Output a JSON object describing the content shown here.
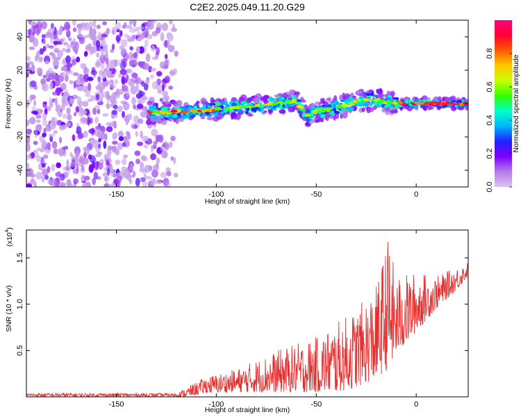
{
  "title": "C2E2.2025.049.11.20.G29",
  "chart_data": [
    {
      "type": "heatmap",
      "xlabel": "Height of straight line (km)",
      "ylabel": "Frequency (Hz)",
      "xlim": [
        -195,
        26
      ],
      "ylim": [
        -50,
        50
      ],
      "xticks": [
        -150,
        -100,
        -50,
        0
      ],
      "yticks": [
        -40,
        -20,
        0,
        20,
        40
      ],
      "colorbar": {
        "label": "Normalized spectral amplitude",
        "range": [
          0,
          1
        ],
        "ticks": [
          0.0,
          0.2,
          0.4,
          0.6,
          0.8
        ],
        "colormap": [
          "#d9c3f2",
          "#b47ee6",
          "#8000ff",
          "#2020ff",
          "#00b4ff",
          "#00ffc8",
          "#32ff00",
          "#c8ff00",
          "#ffc800",
          "#ff5a00",
          "#ff0032",
          "#ff0080"
        ]
      },
      "noise_region_x": [
        -195,
        -120
      ],
      "ridge": [
        {
          "x": -134,
          "y": -5.5
        },
        {
          "x": -120,
          "y": -5
        },
        {
          "x": -110,
          "y": -4.5
        },
        {
          "x": -100,
          "y": -3.5
        },
        {
          "x": -90,
          "y": -2.5
        },
        {
          "x": -80,
          "y": -1.5
        },
        {
          "x": -70,
          "y": 0
        },
        {
          "x": -60,
          "y": 1.5
        },
        {
          "x": -55,
          "y": -7
        },
        {
          "x": -50,
          "y": -5
        },
        {
          "x": -42,
          "y": -3
        },
        {
          "x": -35,
          "y": -1
        },
        {
          "x": -28,
          "y": 2
        },
        {
          "x": -20,
          "y": 2
        },
        {
          "x": -10,
          "y": 0
        },
        {
          "x": 0,
          "y": 0
        },
        {
          "x": 10,
          "y": 0
        },
        {
          "x": 18,
          "y": 0
        },
        {
          "x": 26,
          "y": 0
        }
      ]
    },
    {
      "type": "line",
      "xlabel": "Height of straight line (km)",
      "ylabel": "SNR (10 * v/v)",
      "yscale_label": "(x10",
      "yscale_exp": "4",
      "xlim": [
        -195,
        26
      ],
      "ylim": [
        0,
        1.8
      ],
      "xticks": [
        -150,
        -100,
        -50,
        0
      ],
      "yticks": [
        0.5,
        1.0,
        1.5
      ],
      "color": "#e53030",
      "envelope": [
        {
          "x": -195,
          "lo": 0.0,
          "hi": 0.04
        },
        {
          "x": -120,
          "lo": 0.0,
          "hi": 0.04
        },
        {
          "x": -115,
          "lo": 0.0,
          "hi": 0.1
        },
        {
          "x": -105,
          "lo": 0.04,
          "hi": 0.22
        },
        {
          "x": -90,
          "lo": 0.05,
          "hi": 0.3
        },
        {
          "x": -70,
          "lo": 0.05,
          "hi": 0.5
        },
        {
          "x": -50,
          "lo": 0.05,
          "hi": 0.65
        },
        {
          "x": -40,
          "lo": 0.05,
          "hi": 0.8
        },
        {
          "x": -30,
          "lo": 0.1,
          "hi": 0.95
        },
        {
          "x": -20,
          "lo": 0.2,
          "hi": 1.2
        },
        {
          "x": -14,
          "lo": 0.3,
          "hi": 1.75
        },
        {
          "x": -10,
          "lo": 0.45,
          "hi": 1.3
        },
        {
          "x": 0,
          "lo": 0.7,
          "hi": 1.35
        },
        {
          "x": 10,
          "lo": 0.95,
          "hi": 1.3
        },
        {
          "x": 20,
          "lo": 1.15,
          "hi": 1.4
        },
        {
          "x": 26,
          "lo": 1.3,
          "hi": 1.45
        }
      ]
    }
  ]
}
